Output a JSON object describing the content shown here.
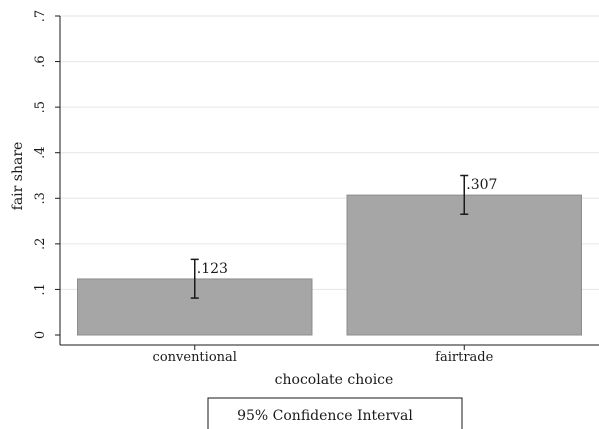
{
  "chart_data": {
    "type": "bar",
    "categories": [
      "conventional",
      "fairtrade"
    ],
    "values": [
      0.123,
      0.307
    ],
    "value_labels": [
      ".123",
      ".307"
    ],
    "ci_low": [
      0.081,
      0.265
    ],
    "ci_high": [
      0.166,
      0.35
    ],
    "xlabel": "chocolate choice",
    "ylabel": "fair share",
    "ylim": [
      0,
      0.7
    ],
    "yticks": [
      0,
      0.1,
      0.2,
      0.3,
      0.4,
      0.5,
      0.6,
      0.7
    ],
    "ytick_labels": [
      "0",
      ".1",
      ".2",
      ".3",
      ".4",
      ".5",
      ".6",
      ".7"
    ],
    "grid": true,
    "legend": {
      "position": "bottom-center",
      "label": "95% Confidence Interval"
    },
    "colors": {
      "bar": "#a6a6a6",
      "bar_edge": "#8c8c8c",
      "error_bar": "#1a1a1a",
      "grid": "#e6e6e6",
      "axis": "#1a1a1a"
    }
  }
}
